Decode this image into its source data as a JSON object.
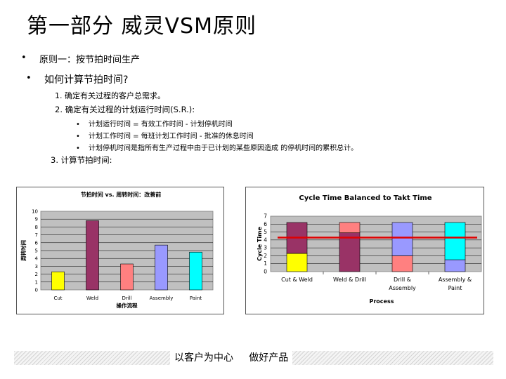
{
  "title": "第一部分  威灵VSM原则",
  "bullets": {
    "b1_marker": "•",
    "b1": "原则一：按节拍时间生产",
    "b2_marker": "•",
    "b2": "如何计算节拍时间?",
    "n1": "1. 确定有关过程的客户总需求。",
    "n2": "2.  确定有关过程的计划运行时间(S.R.):",
    "subs": [
      {
        "marker": "•",
        "text": "计划运行时间 = 有效工作时间 - 计划停机时间"
      },
      {
        "marker": "•",
        "text": "计划工作时间 = 每班计划工作时间 - 批准的休息时间"
      },
      {
        "marker": "•",
        "text": "计划停机时间是指所有生产过程中由于已计划的某些原因造成 的停机时间的累积总计。"
      }
    ],
    "n3": "3.  计算节拍时间:"
  },
  "footer": "以客户为中心     做好产品",
  "colors": {
    "plot_bg": "#c0c0c0",
    "cut": "#ffff00",
    "weld": "#993366",
    "drill": "#ff8080",
    "assembly": "#9999ff",
    "paint": "#00ffff",
    "takt": "#e00000"
  },
  "chart_data": [
    {
      "type": "bar",
      "title": "节拍时间 vs. 周转时间：改善前",
      "xlabel": "操作流程",
      "ylabel": "周转时间",
      "categories": [
        "Cut",
        "Weld",
        "Drill",
        "Assembly",
        "Paint"
      ],
      "values": [
        2.3,
        8.8,
        3.3,
        5.7,
        4.8
      ],
      "ylim": [
        0,
        10
      ],
      "yticks": [
        0,
        1,
        2,
        3,
        4,
        5,
        6,
        7,
        8,
        9,
        10
      ],
      "grid": true,
      "legend": "none"
    },
    {
      "type": "bar",
      "title": "Cycle Time Balanced to Takt Time",
      "xlabel": "Process",
      "ylabel": "Cycle Time",
      "categories": [
        "Cut & Weld",
        "Weld & Drill",
        "Drill & Assembly",
        "Assembly & Paint"
      ],
      "category_lines": [
        [
          "Cut & Weld"
        ],
        [
          "Weld & Drill"
        ],
        [
          "Drill &",
          "Assembly"
        ],
        [
          "Assembly &",
          "Paint"
        ]
      ],
      "stacked": true,
      "segments": [
        [
          {
            "process": "cut",
            "value": 2.3
          },
          {
            "process": "weld",
            "value": 3.9
          }
        ],
        [
          {
            "process": "weld",
            "value": 4.9
          },
          {
            "process": "drill",
            "value": 1.3
          }
        ],
        [
          {
            "process": "drill",
            "value": 2.0
          },
          {
            "process": "assembly",
            "value": 4.2
          }
        ],
        [
          {
            "process": "assembly",
            "value": 1.5
          },
          {
            "process": "paint",
            "value": 4.7
          }
        ]
      ],
      "takt_time": 4.3,
      "ylim": [
        0,
        7
      ],
      "yticks": [
        0,
        1,
        2,
        3,
        4,
        5,
        6,
        7
      ],
      "grid": true,
      "legend": "none"
    }
  ]
}
